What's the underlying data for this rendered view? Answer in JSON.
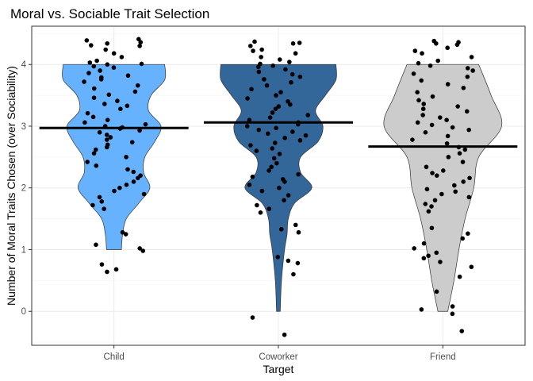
{
  "chart_data": {
    "type": "violin",
    "title": "Moral vs. Sociable Trait Selection",
    "xlabel": "Target",
    "ylabel": "Number of Moral Traits Chosen (over Sociability)",
    "categories": [
      "Child",
      "Coworker",
      "Friend"
    ],
    "ylim": [
      -0.55,
      4.62
    ],
    "yticks": [
      0,
      1,
      2,
      3,
      4
    ],
    "grid": true,
    "legend": "none",
    "colors": [
      "#66b2ff",
      "#336699",
      "#cccccc"
    ],
    "means": [
      2.97,
      3.06,
      2.67
    ],
    "violins": [
      {
        "name": "Child",
        "profile": [
          [
            1.0,
            0.12
          ],
          [
            1.25,
            0.14
          ],
          [
            1.5,
            0.2
          ],
          [
            1.75,
            0.4
          ],
          [
            2.0,
            0.58
          ],
          [
            2.25,
            0.48
          ],
          [
            2.5,
            0.5
          ],
          [
            2.75,
            0.66
          ],
          [
            3.0,
            0.76
          ],
          [
            3.25,
            0.56
          ],
          [
            3.5,
            0.6
          ],
          [
            3.75,
            0.82
          ],
          [
            4.0,
            0.82
          ]
        ]
      },
      {
        "name": "Coworker",
        "profile": [
          [
            0.0,
            0.03
          ],
          [
            0.5,
            0.05
          ],
          [
            1.0,
            0.1
          ],
          [
            1.25,
            0.14
          ],
          [
            1.5,
            0.16
          ],
          [
            1.75,
            0.26
          ],
          [
            2.0,
            0.54
          ],
          [
            2.25,
            0.36
          ],
          [
            2.5,
            0.36
          ],
          [
            2.75,
            0.64
          ],
          [
            3.0,
            0.72
          ],
          [
            3.25,
            0.6
          ],
          [
            3.5,
            0.76
          ],
          [
            3.75,
            0.93
          ],
          [
            4.0,
            0.93
          ]
        ]
      },
      {
        "name": "Friend",
        "profile": [
          [
            0.0,
            0.08
          ],
          [
            0.5,
            0.18
          ],
          [
            1.0,
            0.26
          ],
          [
            1.5,
            0.36
          ],
          [
            2.0,
            0.5
          ],
          [
            2.5,
            0.58
          ],
          [
            3.0,
            0.95
          ],
          [
            3.5,
            0.78
          ],
          [
            4.0,
            0.58
          ]
        ]
      }
    ],
    "points": [
      {
        "name": "Child",
        "values": [
          4.41,
          4.36,
          4.39,
          4.34,
          4.3,
          4.31,
          4.24,
          4.18,
          4.12,
          4.06,
          4.03,
          4.01,
          4.0,
          3.97,
          3.95,
          3.9,
          3.86,
          3.82,
          3.79,
          3.76,
          3.72,
          3.66,
          3.61,
          3.56,
          3.51,
          3.46,
          3.41,
          3.36,
          3.33,
          3.28,
          3.21,
          3.15,
          3.1,
          3.06,
          3.03,
          3.0,
          2.98,
          2.96,
          2.93,
          2.9,
          2.86,
          2.82,
          2.78,
          2.74,
          2.7,
          2.66,
          2.62,
          2.56,
          2.5,
          2.42,
          2.36,
          2.3,
          2.26,
          2.2,
          2.16,
          2.1,
          2.05,
          2.0,
          1.95,
          1.9,
          1.85,
          1.78,
          1.72,
          1.66,
          1.28,
          1.25,
          1.08,
          1.02,
          0.98,
          0.76,
          0.68,
          0.64
        ]
      },
      {
        "name": "Coworker",
        "values": [
          4.37,
          4.35,
          4.34,
          4.3,
          4.24,
          4.22,
          4.18,
          4.12,
          4.08,
          4.04,
          4.01,
          3.98,
          3.96,
          3.92,
          3.88,
          3.84,
          3.8,
          3.76,
          3.71,
          3.66,
          3.6,
          3.55,
          3.5,
          3.45,
          3.4,
          3.35,
          3.32,
          3.28,
          3.22,
          3.18,
          3.14,
          3.1,
          3.06,
          3.03,
          3.0,
          2.97,
          2.94,
          2.91,
          2.88,
          2.85,
          2.81,
          2.77,
          2.73,
          2.69,
          2.64,
          2.6,
          2.55,
          2.48,
          2.4,
          2.34,
          2.28,
          2.22,
          2.18,
          2.14,
          2.1,
          2.05,
          2.0,
          1.95,
          1.88,
          1.8,
          1.72,
          1.66,
          1.6,
          1.4,
          1.33,
          1.28,
          0.88,
          0.82,
          0.78,
          0.6,
          -0.1,
          -0.38
        ]
      },
      {
        "name": "Friend",
        "values": [
          4.38,
          4.36,
          4.34,
          4.32,
          4.27,
          4.22,
          4.18,
          4.12,
          4.06,
          4.02,
          3.98,
          3.94,
          3.9,
          3.85,
          3.8,
          3.74,
          3.68,
          3.62,
          3.55,
          3.48,
          3.42,
          3.36,
          3.32,
          3.28,
          3.24,
          3.18,
          3.14,
          3.1,
          3.06,
          3.02,
          2.98,
          2.94,
          2.9,
          2.84,
          2.78,
          2.72,
          2.66,
          2.62,
          2.56,
          2.5,
          2.42,
          2.34,
          2.28,
          2.24,
          2.2,
          2.16,
          2.1,
          2.04,
          1.98,
          1.94,
          1.9,
          1.85,
          1.8,
          1.74,
          1.7,
          1.62,
          1.35,
          1.26,
          1.18,
          1.1,
          1.02,
          0.95,
          0.9,
          0.86,
          0.8,
          0.72,
          0.56,
          0.32,
          0.08,
          0.03,
          -0.04,
          -0.32
        ]
      }
    ]
  }
}
